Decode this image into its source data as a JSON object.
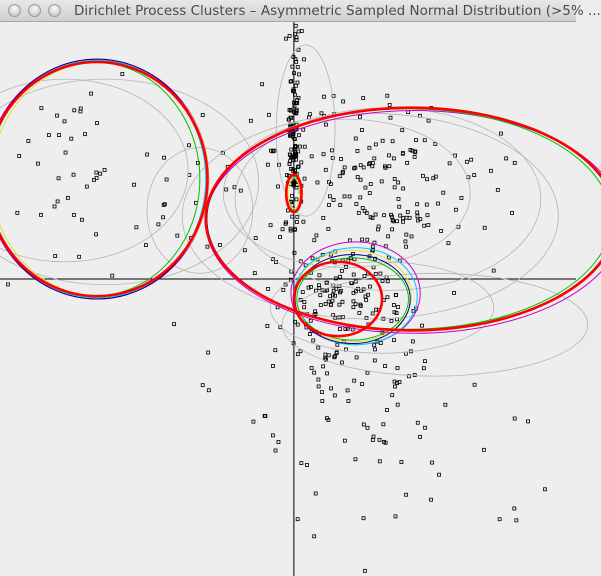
{
  "window": {
    "title": "Dirichlet Process Clusters – Asymmetric Sampled Normal Distribution (>5% ..."
  },
  "colors": {
    "background": "#eeeeee",
    "axis": "#000000",
    "points": "#000000",
    "prior_clusters": "#b4b4b4",
    "iteration_colors": [
      "#000080",
      "#00c8ff",
      "#00c000",
      "#e0e040",
      "#c800c8"
    ],
    "final_clusters": "#ff0000"
  },
  "chart_data": {
    "type": "scatter",
    "title": "",
    "xlabel": "",
    "ylabel": "",
    "xlim": [
      -5,
      4.8
    ],
    "ylim": [
      -5.2,
      4.5
    ],
    "grid": false,
    "points_seed": 7,
    "point_groups": [
      {
        "cx": 0.0,
        "cy": 2.5,
        "sx": 0.07,
        "sy": 1.0,
        "n": 140
      },
      {
        "cx": 0.8,
        "cy": -0.4,
        "sx": 0.55,
        "sy": 0.6,
        "n": 160
      },
      {
        "cx": 1.5,
        "cy": 1.6,
        "sx": 1.1,
        "sy": 0.8,
        "n": 180
      },
      {
        "cx": 1.0,
        "cy": -2.0,
        "sx": 1.0,
        "sy": 1.3,
        "n": 60
      },
      {
        "cx": -3.7,
        "cy": 2.0,
        "sx": 0.9,
        "sy": 0.8,
        "n": 45
      },
      {
        "cx": -1.8,
        "cy": 1.2,
        "sx": 0.9,
        "sy": 1.1,
        "n": 25
      },
      {
        "cx": 2.5,
        "cy": -3.5,
        "sx": 1.2,
        "sy": 0.8,
        "n": 20
      }
    ],
    "prior_clusters": [
      {
        "cx": 1.3,
        "cy": 1.1,
        "rx": 3.2,
        "ry": 1.8
      },
      {
        "cx": 0.9,
        "cy": 1.5,
        "rx": 2.1,
        "ry": 1.3
      },
      {
        "cx": 1.6,
        "cy": 1.4,
        "rx": 2.6,
        "ry": 1.6
      },
      {
        "cx": -3.2,
        "cy": 1.7,
        "rx": 2.6,
        "ry": 1.8
      },
      {
        "cx": -3.9,
        "cy": 1.9,
        "rx": 2.1,
        "ry": 1.6
      },
      {
        "cx": -1.6,
        "cy": 1.2,
        "rx": 0.9,
        "ry": 1.1
      },
      {
        "cx": 0.2,
        "cy": 2.6,
        "rx": 0.5,
        "ry": 1.5
      },
      {
        "cx": 1.5,
        "cy": -0.5,
        "rx": 1.9,
        "ry": 0.8
      },
      {
        "cx": 2.4,
        "cy": -0.8,
        "rx": 2.6,
        "ry": 0.9
      }
    ],
    "iteration_clusters": [
      {
        "cx": 1.05,
        "cy": -0.25,
        "rx": 1.1,
        "ry": 0.9,
        "color": 4
      },
      {
        "cx": 1.0,
        "cy": -0.3,
        "rx": 1.0,
        "ry": 0.8,
        "color": 3
      },
      {
        "cx": 1.0,
        "cy": -0.35,
        "rx": 0.95,
        "ry": 0.72,
        "color": 2
      },
      {
        "cx": 1.05,
        "cy": -0.3,
        "rx": 1.05,
        "ry": 0.85,
        "color": 1
      },
      {
        "cx": 1.0,
        "cy": -0.35,
        "rx": 0.98,
        "ry": 0.78,
        "color": 0
      },
      {
        "cx": 2.05,
        "cy": 1.0,
        "rx": 3.55,
        "ry": 1.95,
        "color": 4
      },
      {
        "cx": 2.0,
        "cy": 1.05,
        "rx": 3.5,
        "ry": 1.95,
        "color": 3
      },
      {
        "cx": 1.95,
        "cy": 1.05,
        "rx": 3.45,
        "ry": 1.93,
        "color": 2
      },
      {
        "cx": 2.0,
        "cy": 1.05,
        "rx": 3.48,
        "ry": 1.94,
        "color": 0
      },
      {
        "cx": -3.35,
        "cy": 1.75,
        "rx": 1.9,
        "ry": 2.1,
        "color": 4
      },
      {
        "cx": -3.3,
        "cy": 1.75,
        "rx": 1.85,
        "ry": 2.05,
        "color": 3
      },
      {
        "cx": -3.4,
        "cy": 1.75,
        "rx": 1.8,
        "ry": 2.05,
        "color": 2
      },
      {
        "cx": -3.35,
        "cy": 1.75,
        "rx": 1.85,
        "ry": 2.08,
        "color": 1
      },
      {
        "cx": -3.35,
        "cy": 1.75,
        "rx": 1.88,
        "ry": 2.1,
        "color": 0
      },
      {
        "cx": 0.0,
        "cy": 1.5,
        "rx": 0.12,
        "ry": 0.3,
        "color": 2
      },
      {
        "cx": 0.0,
        "cy": 1.5,
        "rx": 0.1,
        "ry": 0.27,
        "color": 3
      }
    ],
    "final_clusters": [
      {
        "cx": 2.0,
        "cy": 1.05,
        "rx": 3.5,
        "ry": 1.95
      },
      {
        "cx": -3.35,
        "cy": 1.75,
        "rx": 1.88,
        "ry": 2.05
      },
      {
        "cx": 0.75,
        "cy": -0.35,
        "rx": 0.75,
        "ry": 0.65
      },
      {
        "cx": 0.0,
        "cy": 1.5,
        "rx": 0.13,
        "ry": 0.33
      }
    ]
  }
}
